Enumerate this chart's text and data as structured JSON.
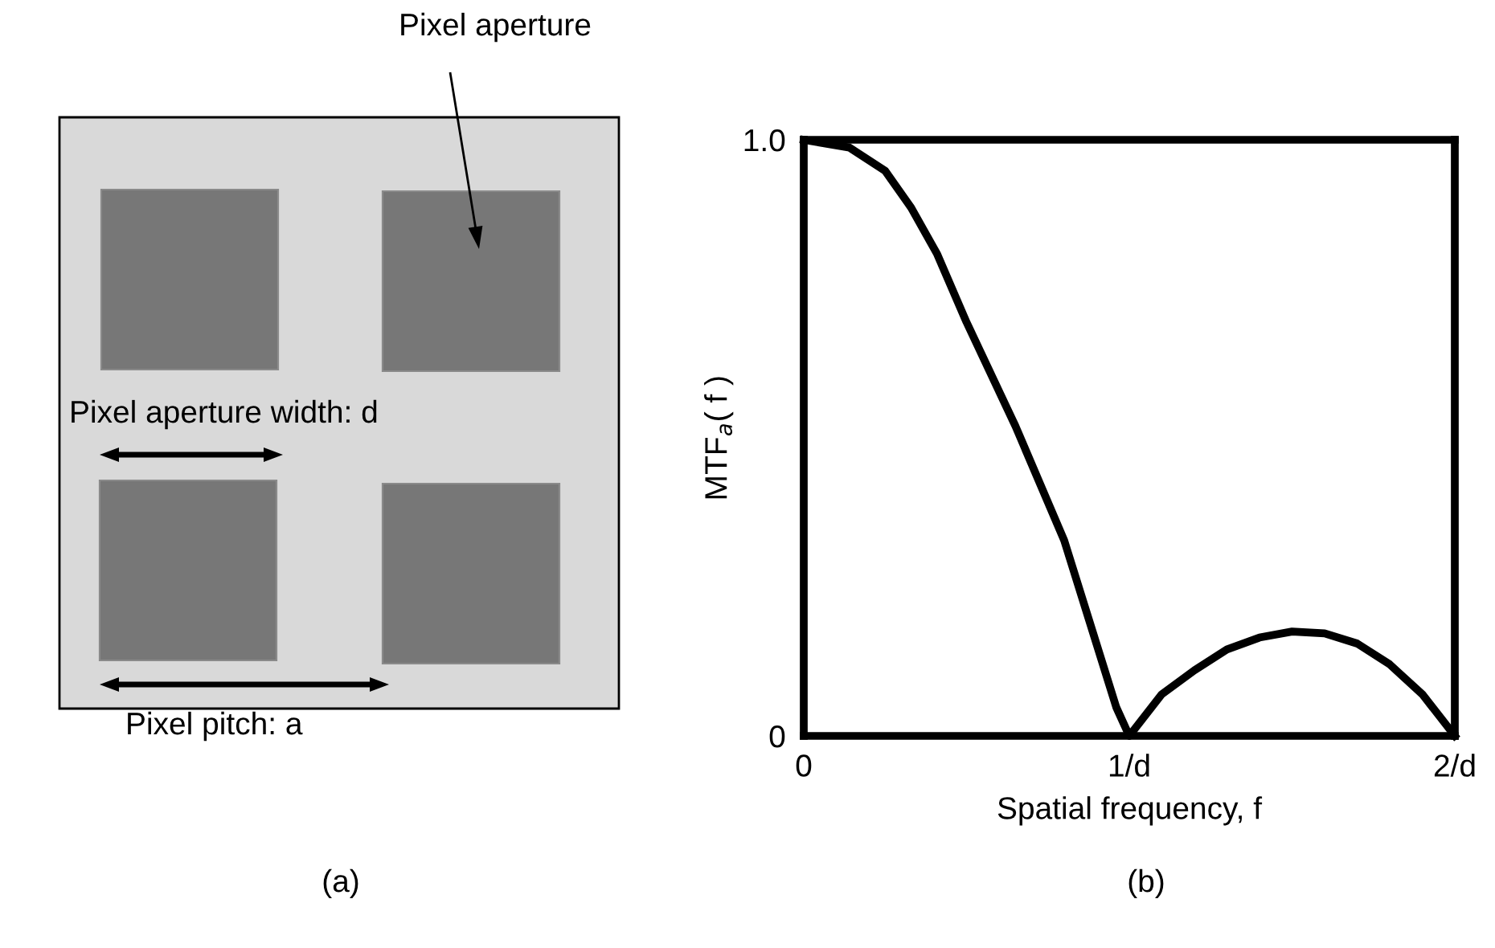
{
  "chart_data": [
    {
      "type": "other",
      "annotations": [
        "Pixel aperture",
        "Pixel aperture width: d",
        "Pixel pitch: a",
        "(a)"
      ]
    },
    {
      "type": "line",
      "xlabel": "Spatial frequency, f",
      "ylabel": "MTF$_{a}$( f )",
      "annotations": [
        "(b)"
      ],
      "xlim": [
        0,
        2
      ],
      "ylim": [
        0,
        1
      ],
      "xticks": [
        0,
        {
          "value": 1,
          "label": "1/d"
        },
        {
          "value": 2,
          "label": "2/d"
        }
      ],
      "yticks": [
        0,
        {
          "value": 1,
          "label": "1.0"
        }
      ],
      "series": [
        {
          "color": "#000000",
          "x": [
            0,
            0.14,
            0.25,
            0.33,
            0.41,
            0.5,
            0.65,
            0.8,
            0.96,
            1.0,
            1.1,
            1.2,
            1.3,
            1.4,
            1.5,
            1.6,
            1.7,
            1.8,
            1.9,
            2.0
          ],
          "values": [
            1.0,
            0.987,
            0.948,
            0.886,
            0.808,
            0.694,
            0.52,
            0.328,
            0.048,
            0,
            0.07,
            0.11,
            0.145,
            0.165,
            0.175,
            0.172,
            0.155,
            0.12,
            0.07,
            0
          ]
        }
      ]
    }
  ]
}
